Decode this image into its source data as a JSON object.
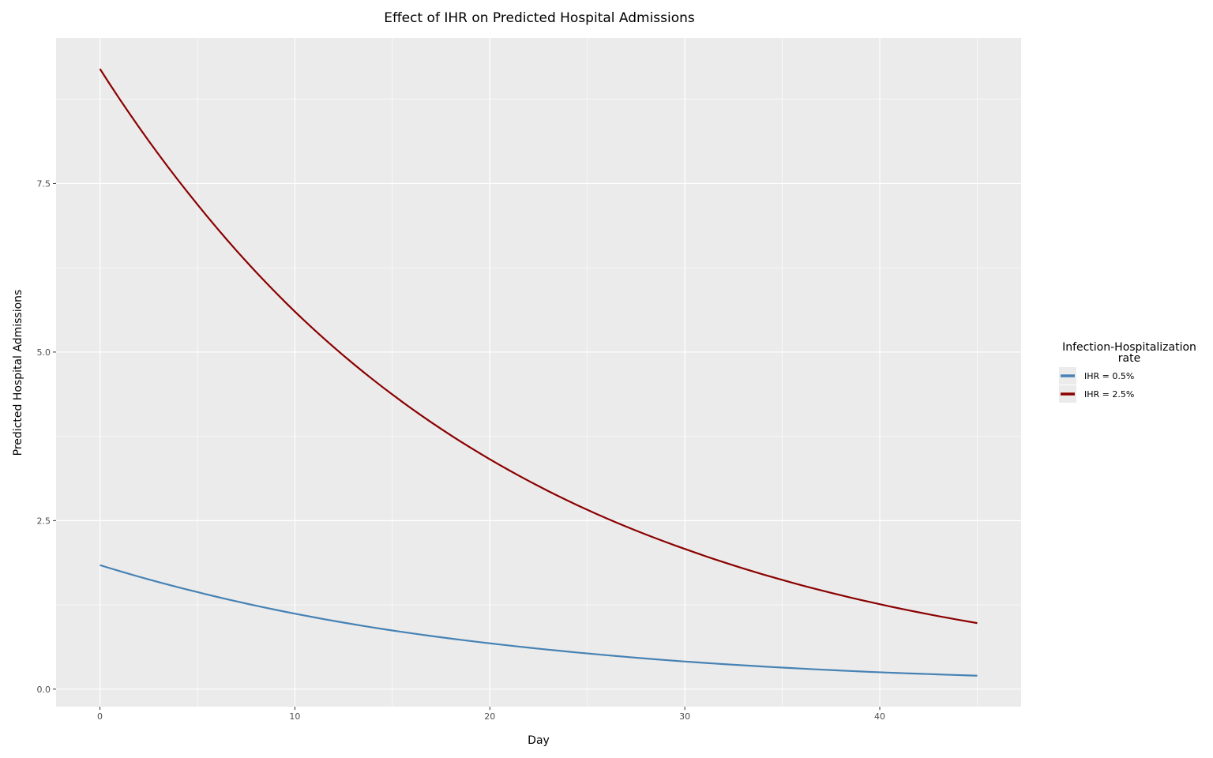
{
  "chart_data": {
    "type": "line",
    "title": "Effect of IHR on Predicted Hospital Admissions",
    "xlabel": "Day",
    "ylabel": "Predicted Hospital Admissions",
    "xlim": [
      -2.25,
      47.25
    ],
    "ylim": [
      -0.26,
      9.66
    ],
    "xticks": [
      0,
      10,
      20,
      30,
      40
    ],
    "xtick_labels": [
      "0",
      "10",
      "20",
      "30",
      "40"
    ],
    "yticks": [
      0,
      2.5,
      5,
      7.5
    ],
    "ytick_labels": [
      "0.0",
      "2.5",
      "5.0",
      "7.5"
    ],
    "grid": true,
    "legend": {
      "title_lines": [
        "Infection-Hospitalization",
        "rate"
      ],
      "placement": "right"
    },
    "x": [
      0,
      5,
      10,
      15,
      20,
      25,
      30,
      35,
      40,
      45
    ],
    "series": [
      {
        "name": "IHR = 0.5%",
        "color": "#4682b4",
        "values": [
          1.84,
          1.44,
          1.12,
          0.87,
          0.68,
          0.53,
          0.41,
          0.32,
          0.25,
          0.2
        ]
      },
      {
        "name": "IHR = 2.5%",
        "color": "#8b0000",
        "values": [
          9.2,
          7.19,
          5.6,
          4.37,
          3.41,
          2.66,
          2.08,
          1.62,
          1.26,
          0.98
        ]
      }
    ],
    "panel_color": "#ebebeb",
    "grid_color": "#ffffff"
  }
}
